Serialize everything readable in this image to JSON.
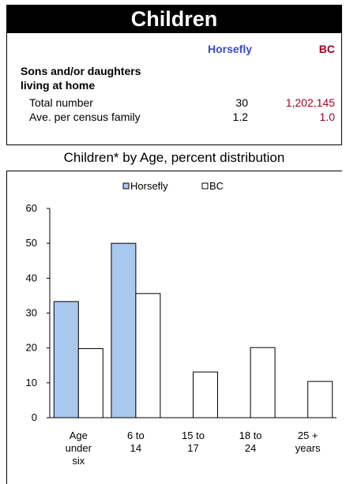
{
  "header": {
    "title": "Children"
  },
  "stats": {
    "col_horsefly": "Horsefly",
    "col_bc": "BC",
    "section_line1": "Sons and/or daughters",
    "section_line2": "living at home",
    "rows": [
      {
        "label": "Total number",
        "horsefly": "30",
        "bc": "1,202,145"
      },
      {
        "label": "Ave. per census family",
        "horsefly": "1.2",
        "bc": "1.0"
      }
    ]
  },
  "chart_data": {
    "type": "bar",
    "title": "Children* by Age, percent distribution",
    "categories": [
      [
        "Age",
        "under",
        "six"
      ],
      [
        "6 to",
        "14"
      ],
      [
        "15 to",
        "17"
      ],
      [
        "18 to",
        "24"
      ],
      [
        "25 +",
        "years"
      ]
    ],
    "series": [
      {
        "name": "Horsefly",
        "values": [
          33.3,
          50,
          0,
          0,
          0
        ],
        "color": "#a9c8ee"
      },
      {
        "name": "BC",
        "values": [
          19.8,
          35.6,
          13.1,
          20.1,
          10.4
        ],
        "color": "#ffffff"
      }
    ],
    "ylim": [
      0,
      60
    ],
    "yticks": [
      0,
      10,
      20,
      30,
      40,
      50,
      60
    ],
    "legend_position": "top",
    "grid": false
  }
}
